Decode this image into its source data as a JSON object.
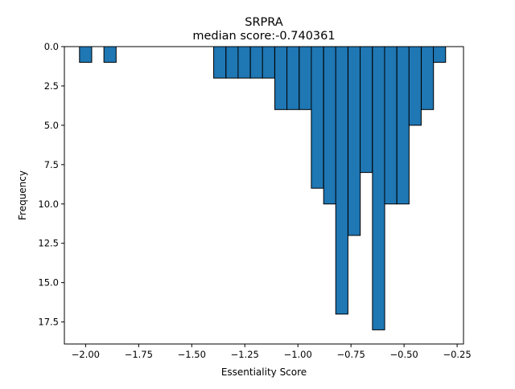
{
  "chart_data": {
    "type": "bar",
    "title": "SRPRA",
    "subtitle": "median score:-0.740361",
    "xlabel": "Essentiality Score",
    "ylabel": "Frequency",
    "xlim": [
      -2.1,
      -0.22
    ],
    "ylim": [
      0,
      18.9
    ],
    "y_axis_inverted": true,
    "bar_width": 0.0575,
    "grid": false,
    "bar_color": "#1f77b4",
    "edge_color": "#000000",
    "x_ticks": [
      {
        "value": -2.0,
        "label": "−2.00"
      },
      {
        "value": -1.75,
        "label": "−1.75"
      },
      {
        "value": -1.5,
        "label": "−1.50"
      },
      {
        "value": -1.25,
        "label": "−1.25"
      },
      {
        "value": -1.0,
        "label": "−1.00"
      },
      {
        "value": -0.75,
        "label": "−0.75"
      },
      {
        "value": -0.5,
        "label": "−0.50"
      },
      {
        "value": -0.25,
        "label": "−0.25"
      }
    ],
    "y_ticks": [
      {
        "value": 0,
        "label": "0.0"
      },
      {
        "value": 2.5,
        "label": "2.5"
      },
      {
        "value": 5,
        "label": "5.0"
      },
      {
        "value": 7.5,
        "label": "7.5"
      },
      {
        "value": 10,
        "label": "10.0"
      },
      {
        "value": 12.5,
        "label": "12.5"
      },
      {
        "value": 15,
        "label": "15.0"
      },
      {
        "value": 17.5,
        "label": "17.5"
      }
    ],
    "bins": [
      {
        "x": -2.0,
        "count": 1
      },
      {
        "x": -1.885,
        "count": 1
      },
      {
        "x": -1.368,
        "count": 2
      },
      {
        "x": -1.31,
        "count": 2
      },
      {
        "x": -1.253,
        "count": 2
      },
      {
        "x": -1.195,
        "count": 2
      },
      {
        "x": -1.138,
        "count": 2
      },
      {
        "x": -1.08,
        "count": 4
      },
      {
        "x": -1.023,
        "count": 4
      },
      {
        "x": -0.965,
        "count": 4
      },
      {
        "x": -0.908,
        "count": 9
      },
      {
        "x": -0.85,
        "count": 10
      },
      {
        "x": -0.793,
        "count": 17
      },
      {
        "x": -0.735,
        "count": 12
      },
      {
        "x": -0.678,
        "count": 8
      },
      {
        "x": -0.62,
        "count": 18
      },
      {
        "x": -0.563,
        "count": 10
      },
      {
        "x": -0.505,
        "count": 10
      },
      {
        "x": -0.448,
        "count": 5
      },
      {
        "x": -0.39,
        "count": 4
      },
      {
        "x": -0.333,
        "count": 1
      }
    ]
  }
}
